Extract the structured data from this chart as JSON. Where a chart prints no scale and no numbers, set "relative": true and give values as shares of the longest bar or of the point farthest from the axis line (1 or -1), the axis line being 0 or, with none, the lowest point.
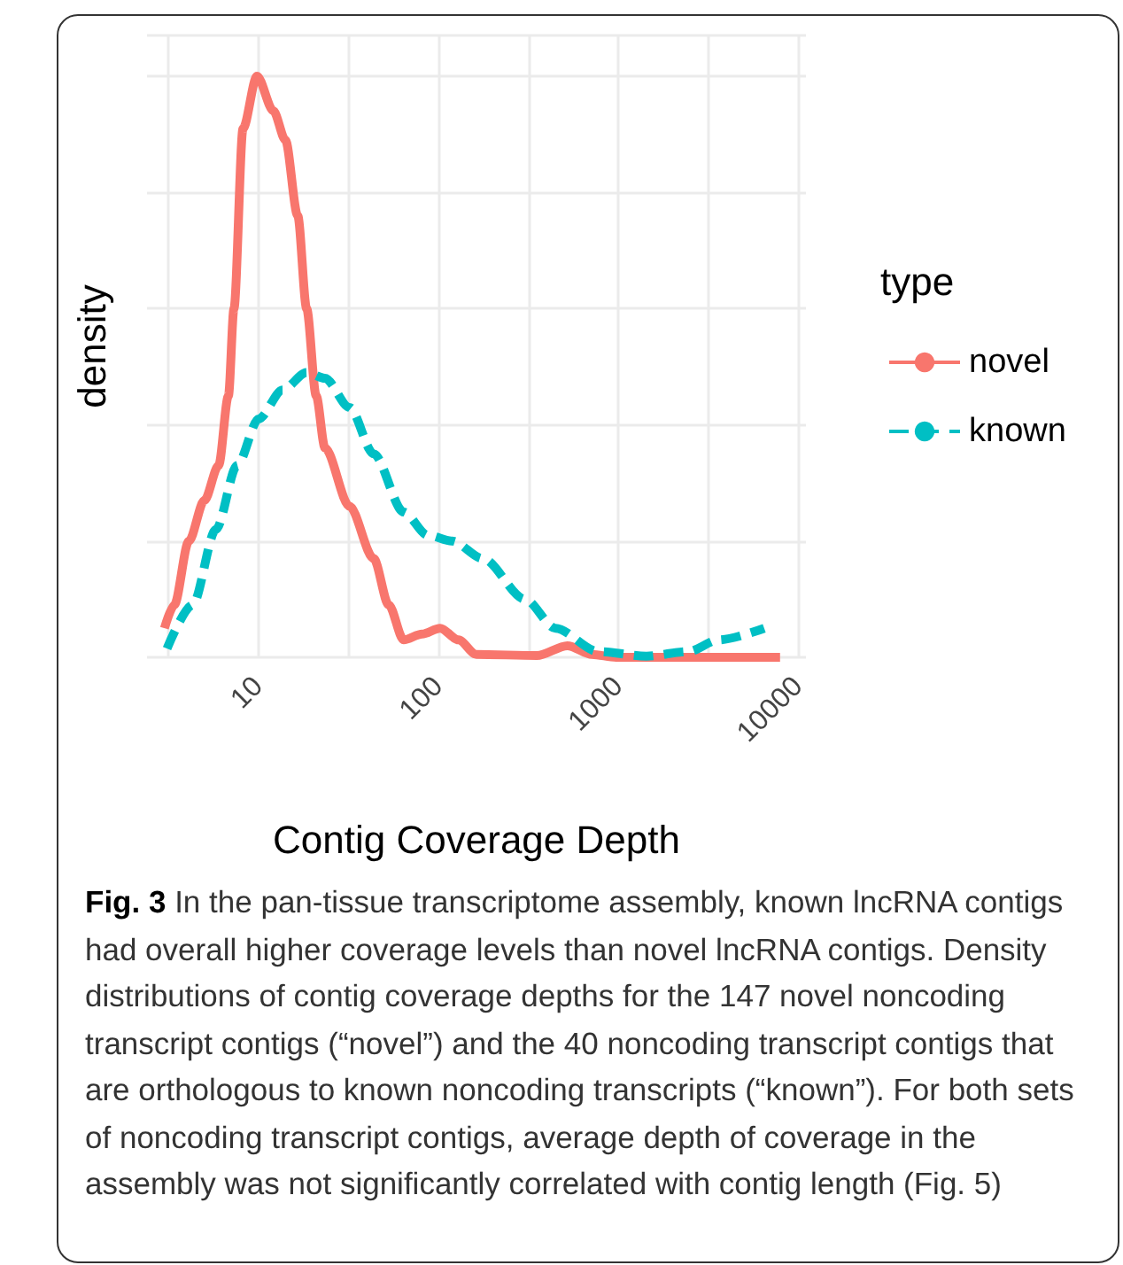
{
  "chart_data": {
    "type": "line",
    "title": "Fig. 3",
    "xlabel": "Contig Coverage Depth",
    "ylabel": "density",
    "legend_title": "type",
    "annotations": [
      "In the pan-tissue transcriptome assembly, known lncRNA contigs had overall higher coverage levels than novel lncRNA contigs. Density distributions of contig coverage depths for the 147 novel noncoding transcript contigs (“novel”) and the 40 noncoding transcript contigs that are orthologous to known noncoding transcripts (“known”). For both sets of noncoding transcript contigs, average depth of coverage in the assembly was not significantly correlated with contig length (Fig. 5)"
    ],
    "relative": true,
    "log": "x",
    "xlim": [
      2.4,
      11000
    ],
    "xticks": [
      {
        "value": 3.162,
        "label": null
      },
      10,
      {
        "value": 31.62,
        "label": null
      },
      100,
      {
        "value": 316.2,
        "label": null
      },
      1000,
      {
        "value": 3162,
        "label": null
      },
      10000
    ],
    "grid": true,
    "legend": "right",
    "marker": "none",
    "series": [
      {
        "name": "novel",
        "color": "#f8766d",
        "line_style": "solid",
        "x": [
          3.0,
          3.4,
          4.1,
          5.0,
          6.0,
          6.8,
          7.3,
          8.2,
          9.8,
          12.1,
          14.1,
          16.5,
          18.5,
          20.9,
          23.4,
          32,
          43.6,
          52.9,
          64,
          81,
          102,
          129,
          162,
          352,
          520,
          710,
          970,
          7900
        ],
        "values": [
          0.05,
          0.09,
          0.2,
          0.27,
          0.33,
          0.45,
          0.6,
          0.91,
          1.0,
          0.94,
          0.89,
          0.76,
          0.6,
          0.45,
          0.36,
          0.26,
          0.17,
          0.09,
          0.03,
          0.04,
          0.05,
          0.03,
          0.005,
          0.003,
          0.02,
          0.005,
          0,
          0
        ]
      },
      {
        "name": "known",
        "color": "#00bfc4",
        "line_style": "dashed",
        "x": [
          3.1,
          4.3,
          5.8,
          7.6,
          10,
          13.6,
          18.5,
          23.4,
          32,
          43.6,
          64,
          87,
          119,
          176,
          302,
          446,
          769,
          1430,
          2450,
          3600,
          6450
        ],
        "values": [
          0.015,
          0.09,
          0.22,
          0.33,
          0.41,
          0.46,
          0.49,
          0.48,
          0.43,
          0.35,
          0.25,
          0.21,
          0.2,
          0.17,
          0.1,
          0.05,
          0.01,
          0.002,
          0.01,
          0.03,
          0.05
        ]
      }
    ]
  }
}
